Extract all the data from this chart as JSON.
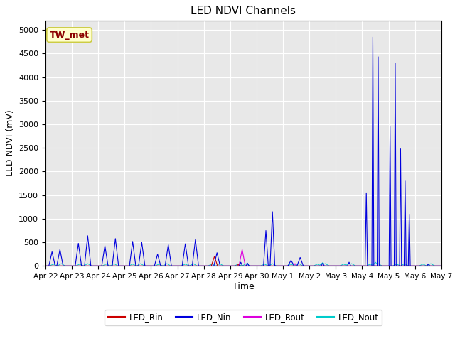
{
  "title": "LED NDVI Channels",
  "xlabel": "Time",
  "ylabel": "LED NDVI (mV)",
  "ylim": [
    0,
    5200
  ],
  "yticks": [
    0,
    500,
    1000,
    1500,
    2000,
    2500,
    3000,
    3500,
    4000,
    4500,
    5000
  ],
  "annotation_text": "TW_met",
  "annotation_color": "#8b0000",
  "annotation_bg": "#ffffcc",
  "annotation_border": "#cccc44",
  "colors": {
    "LED_Rin": "#cc0000",
    "LED_Nin": "#0000dd",
    "LED_Rout": "#dd00dd",
    "LED_Nout": "#00cccc"
  },
  "bg_color": "#e8e8e8",
  "fig_bg_color": "#ffffff",
  "grid_color": "#ffffff",
  "xtick_labels": [
    "Apr 22",
    "Apr 23",
    "Apr 24",
    "Apr 25",
    "Apr 26",
    "Apr 27",
    "Apr 28",
    "Apr 29",
    "Apr 30",
    "May 1",
    "May 2",
    "May 3",
    "May 4",
    "May 5",
    "May 6",
    "May 7"
  ]
}
